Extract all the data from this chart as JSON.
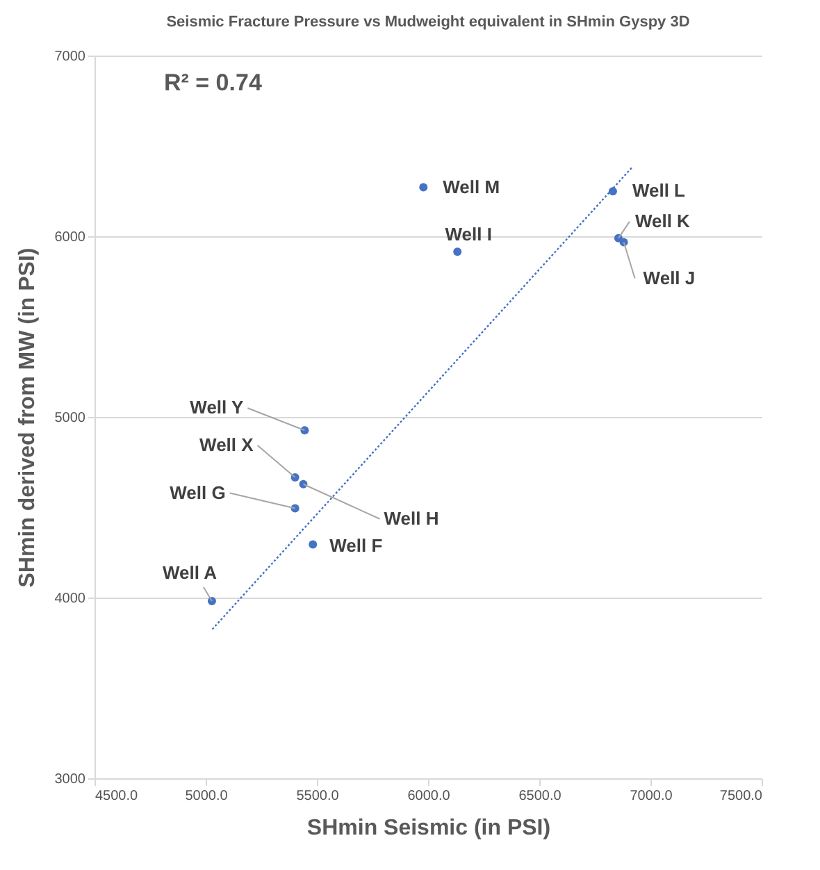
{
  "chart_data": {
    "type": "scatter",
    "title": "Seismic Fracture Pressure vs Mudweight equivalent in SHmin Gyspy 3D",
    "xlabel": "SHmin Seismic (in PSI)",
    "ylabel": "SHmin derived from MW (in PSI)",
    "series": [
      {
        "marker": "circle",
        "color": "#4472c4",
        "x": [
          5028,
          5402,
          5402,
          5439,
          5445,
          5482,
          6132,
          5979,
          6831,
          6856,
          6880
        ],
        "values": [
          3981,
          4494,
          4665,
          4628,
          4926,
          4294,
          5914,
          6271,
          6249,
          5989,
          5967
        ]
      },
      {
        "type": "line",
        "color": "#4472c4",
        "line_style": "dotted",
        "x": [
          5030,
          6920
        ],
        "values": [
          3825,
          6385
        ]
      }
    ],
    "annotations": [
      "R² = 0.74",
      {
        "text": "Well A",
        "x": 5028,
        "y": 3981
      },
      {
        "text": "Well G",
        "x": 5402,
        "y": 4494
      },
      {
        "text": "Well X",
        "x": 5402,
        "y": 4665
      },
      {
        "text": "Well H",
        "x": 5439,
        "y": 4628
      },
      {
        "text": "Well Y",
        "x": 5445,
        "y": 4926
      },
      {
        "text": "Well F",
        "x": 5482,
        "y": 4294
      },
      {
        "text": "Well I",
        "x": 6132,
        "y": 5914
      },
      {
        "text": "Well M",
        "x": 5979,
        "y": 6271
      },
      {
        "text": "Well L",
        "x": 6831,
        "y": 6249
      },
      {
        "text": "Well K",
        "x": 6856,
        "y": 5989
      },
      {
        "text": "Well J",
        "x": 6880,
        "y": 5967
      }
    ],
    "xlim": [
      4500,
      7500
    ],
    "xticks": [
      {
        "value": 4500,
        "label": "4500.0"
      },
      {
        "value": 5000,
        "label": "5000.0"
      },
      {
        "value": 5500,
        "label": "5500.0"
      },
      {
        "value": 6000,
        "label": "6000.0"
      },
      {
        "value": 6500,
        "label": "6500.0"
      },
      {
        "value": 7000,
        "label": "7000.0"
      },
      {
        "value": 7500,
        "label": "7500.0"
      }
    ],
    "ylim": [
      3000,
      7000
    ],
    "yticks": [
      3000,
      4000,
      5000,
      6000,
      7000
    ],
    "grid": "y"
  }
}
